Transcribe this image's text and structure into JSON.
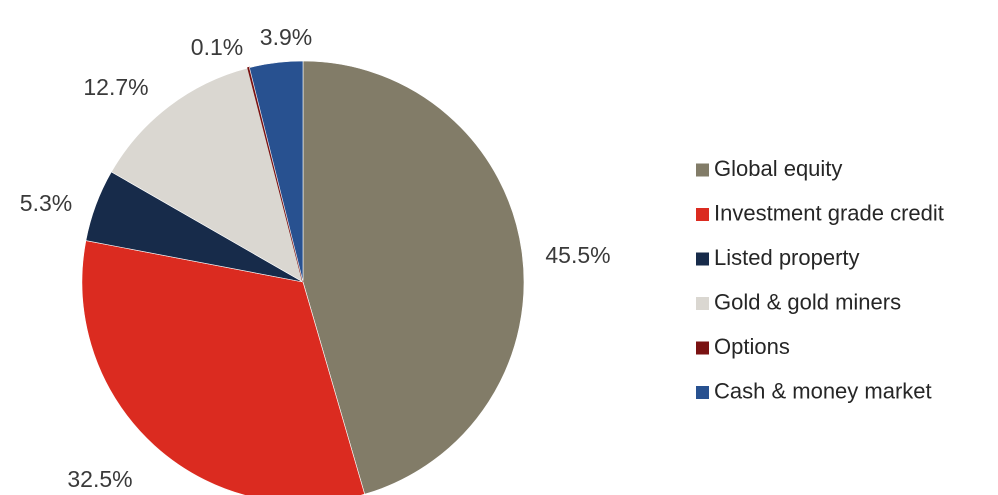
{
  "chart_data": {
    "type": "pie",
    "slices": [
      {
        "label": "Global equity",
        "value": 45.5,
        "value_label": "45.5%",
        "color": "#827c68"
      },
      {
        "label": "Investment grade credit",
        "value": 32.5,
        "value_label": "32.5%",
        "color": "#db2b20"
      },
      {
        "label": "Listed property",
        "value": 5.3,
        "value_label": "5.3%",
        "color": "#172b4a"
      },
      {
        "label": "Gold & gold miners",
        "value": 12.7,
        "value_label": "12.7%",
        "color": "#dad7d1"
      },
      {
        "label": "Options",
        "value": 0.1,
        "value_label": "0.1%",
        "color": "#7a1212"
      },
      {
        "label": "Cash & money market",
        "value": 3.9,
        "value_label": "3.9%",
        "color": "#285190"
      }
    ],
    "start": "12 o'clock",
    "direction": "clockwise",
    "legend_position": "right"
  }
}
